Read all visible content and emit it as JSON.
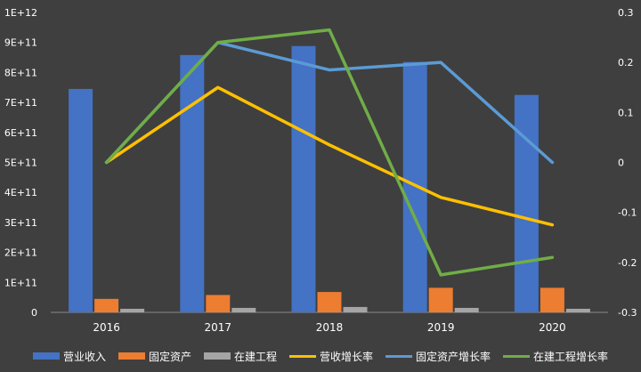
{
  "chart_data": {
    "type": "bar",
    "categories": [
      "2016",
      "2017",
      "2018",
      "2019",
      "2020"
    ],
    "series": [
      {
        "name": "营业收入",
        "kind": "bar",
        "axis": "left",
        "color": "#4472c4",
        "values": [
          745000000000.0,
          858000000000.0,
          888000000000.0,
          835000000000.0,
          725000000000.0
        ]
      },
      {
        "name": "固定资产",
        "kind": "bar",
        "axis": "left",
        "color": "#ed7d31",
        "values": [
          45000000000.0,
          58000000000.0,
          68000000000.0,
          82000000000.0,
          82000000000.0
        ]
      },
      {
        "name": "在建工程",
        "kind": "bar",
        "axis": "left",
        "color": "#a5a5a5",
        "values": [
          12000000000.0,
          15000000000.0,
          18000000000.0,
          15000000000.0,
          12000000000.0
        ]
      },
      {
        "name": "营收增长率",
        "kind": "line",
        "axis": "right",
        "color": "#ffc000",
        "values": [
          0,
          0.15,
          0.035,
          -0.07,
          -0.125
        ]
      },
      {
        "name": "固定资产增长率",
        "kind": "line",
        "axis": "right",
        "color": "#5b9bd5",
        "values": [
          0,
          0.24,
          0.185,
          0.2,
          0
        ]
      },
      {
        "name": "在建工程增长率",
        "kind": "line",
        "axis": "right",
        "color": "#70ad47",
        "values": [
          0,
          0.24,
          0.265,
          -0.225,
          -0.19
        ]
      }
    ],
    "ylim": [
      0,
      1000000000000.0
    ],
    "y_ticks": [
      "0",
      "1E+11",
      "2E+11",
      "3E+11",
      "4E+11",
      "5E+11",
      "6E+11",
      "7E+11",
      "8E+11",
      "9E+11",
      "1E+12"
    ],
    "y2lim": [
      -0.3,
      0.3
    ],
    "y2_ticks": [
      "-0.3",
      "-0.2",
      "-0.1",
      "0",
      "0.1",
      "0.2",
      "0.3"
    ],
    "grid": false,
    "legend_position": "bottom"
  }
}
